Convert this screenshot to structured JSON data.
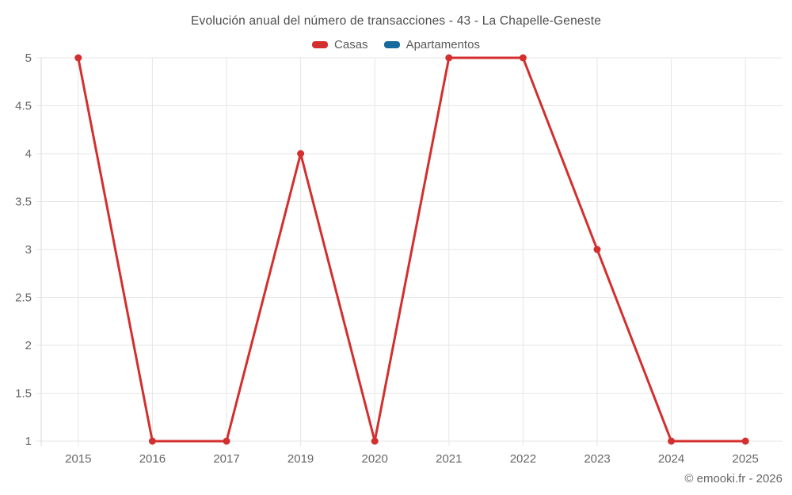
{
  "header": {
    "title": "Evolución anual del número de transacciones - 43 - La Chapelle-Geneste"
  },
  "footer": {
    "copyright": "© emooki.fr - 2026"
  },
  "chart_data": {
    "type": "line",
    "title": "Evolución anual del número de transacciones - 43 - La Chapelle-Geneste",
    "categories": [
      "2015",
      "2016",
      "2017",
      "2019",
      "2020",
      "2021",
      "2022",
      "2023",
      "2024",
      "2025"
    ],
    "series": [
      {
        "name": "Casas",
        "color": "#d32f2f",
        "values": [
          5,
          1,
          1,
          4,
          1,
          5,
          5,
          3,
          1,
          1
        ]
      },
      {
        "name": "Apartamentos",
        "color": "#17699e",
        "values": []
      }
    ],
    "xlabel": "",
    "ylabel": "",
    "ylim": [
      1,
      5
    ],
    "yticks": [
      1,
      1.5,
      2,
      2.5,
      3,
      3.5,
      4,
      4.5,
      5
    ],
    "grid": true,
    "legend_position": "top",
    "colors": {
      "grid": "#e6e6e6",
      "axis": "#d9d9d9",
      "tick_label": "#666666",
      "title": "#4d4d4d"
    }
  }
}
